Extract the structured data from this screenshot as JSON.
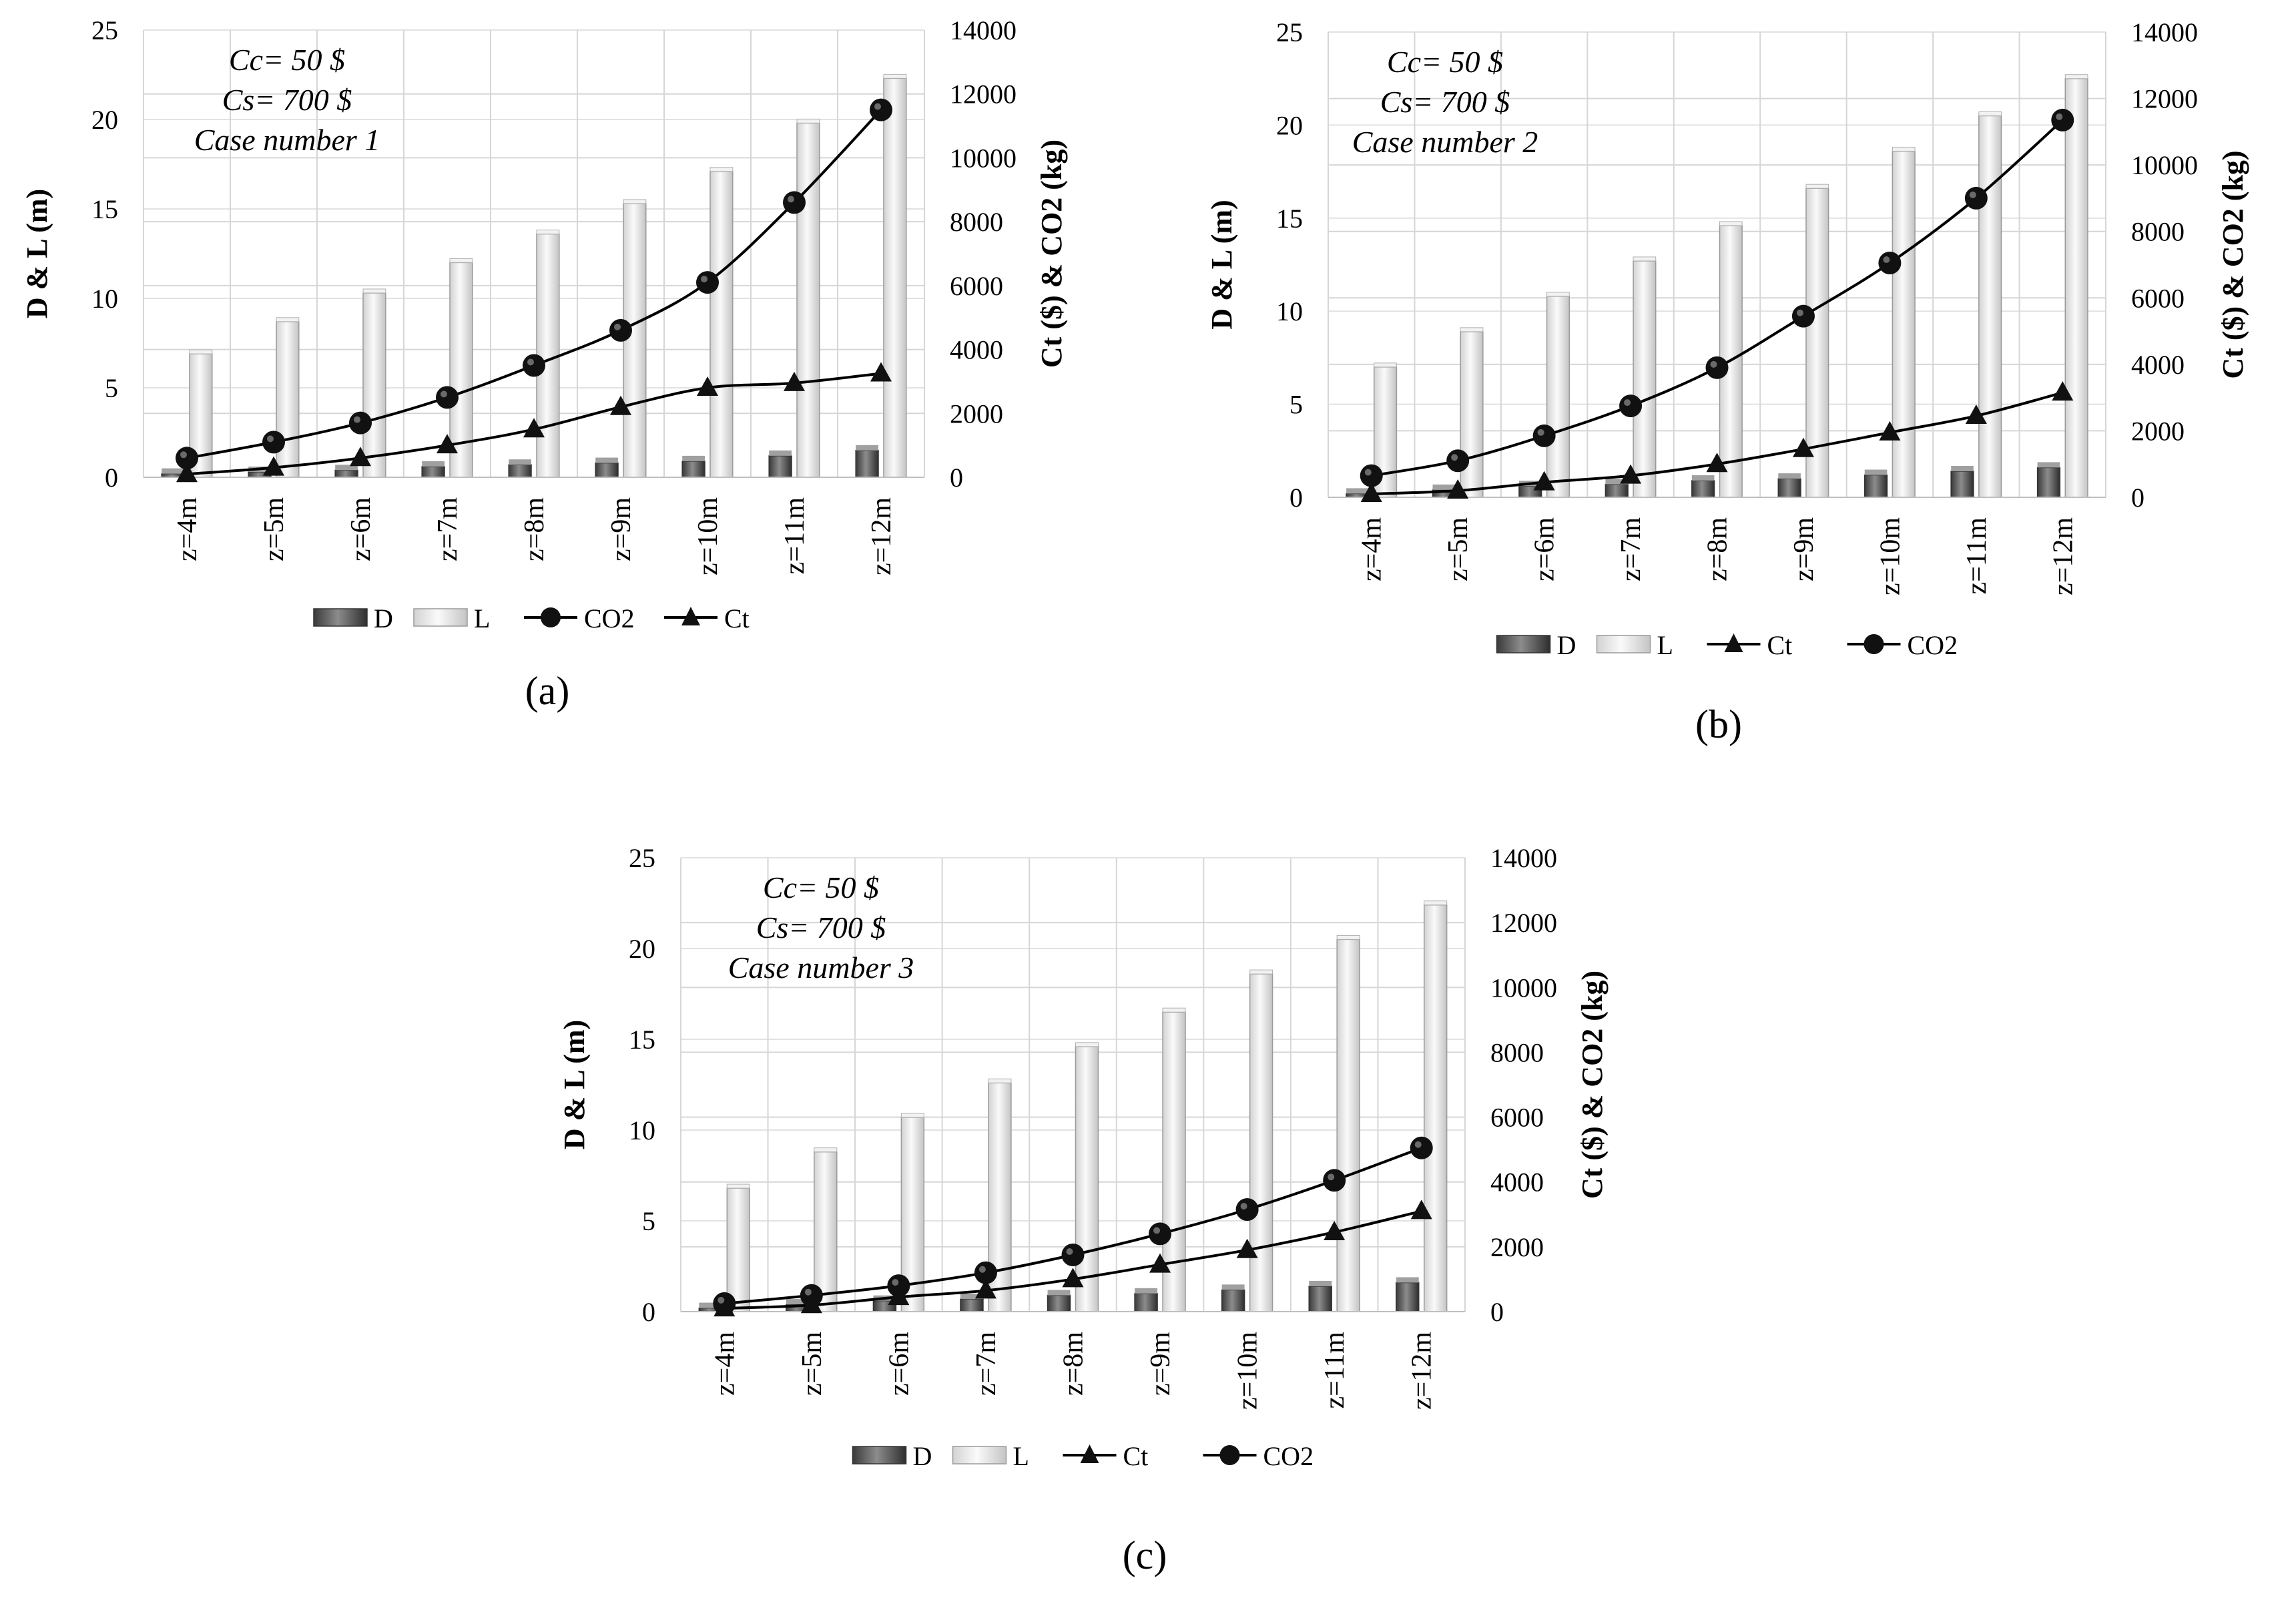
{
  "chart_data": [
    {
      "panel_label": "(a)",
      "type": "bar+line",
      "annotation": [
        "Cc= 50 $",
        "Cs= 700 $",
        "Case number 1"
      ],
      "ylabel_left": "D & L (m)",
      "ylabel_right": "Ct ($) & CO2 (kg)",
      "ylim_left": [
        0,
        25
      ],
      "ylim_right": [
        0,
        14000
      ],
      "yticks_left": [
        "0",
        "5",
        "10",
        "15",
        "20",
        "25"
      ],
      "yticks_right": [
        "0",
        "2000",
        "4000",
        "6000",
        "8000",
        "10000",
        "12000",
        "14000"
      ],
      "categories": [
        "z=4m",
        "z=5m",
        "z=6m",
        "z=7m",
        "z=8m",
        "z=9m",
        "z=10m",
        "z=11m",
        "z=12m"
      ],
      "grid": true,
      "legend_position": "bottom",
      "legend_order": [
        "D",
        "L",
        "CO2",
        "Ct"
      ],
      "series": [
        {
          "name": "D",
          "kind": "bar",
          "axis": "left",
          "color": "#5a5a5a",
          "values": [
            0.2,
            0.3,
            0.4,
            0.6,
            0.7,
            0.8,
            0.9,
            1.2,
            1.5
          ]
        },
        {
          "name": "L",
          "kind": "bar",
          "axis": "left",
          "color": "#e8e8e8",
          "values": [
            6.9,
            8.7,
            10.3,
            12.0,
            13.6,
            15.3,
            17.1,
            19.8,
            22.3
          ]
        },
        {
          "name": "CO2",
          "kind": "line",
          "marker": "circle",
          "axis": "right",
          "color": "#000000",
          "values": [
            600,
            1100,
            1700,
            2500,
            3500,
            4600,
            6100,
            8600,
            11500
          ]
        },
        {
          "name": "Ct",
          "kind": "line",
          "marker": "triangle",
          "axis": "right",
          "color": "#000000",
          "values": [
            100,
            300,
            600,
            1000,
            1500,
            2200,
            2800,
            2950,
            3250
          ]
        }
      ]
    },
    {
      "panel_label": "(b)",
      "type": "bar+line",
      "annotation": [
        "Cc= 50 $",
        "Cs= 700 $",
        "Case number 2"
      ],
      "ylabel_left": "D & L (m)",
      "ylabel_right": "Ct ($) & CO2 (kg)",
      "ylim_left": [
        0,
        25
      ],
      "ylim_right": [
        0,
        14000
      ],
      "yticks_left": [
        "0",
        "5",
        "10",
        "15",
        "20",
        "25"
      ],
      "yticks_right": [
        "0",
        "2000",
        "4000",
        "6000",
        "8000",
        "10000",
        "12000",
        "14000"
      ],
      "categories": [
        "z=4m",
        "z=5m",
        "z=6m",
        "z=7m",
        "z=8m",
        "z=9m",
        "z=10m",
        "z=11m",
        "z=12m"
      ],
      "grid": true,
      "legend_position": "bottom",
      "legend_order": [
        "D",
        "L",
        "Ct",
        "CO2"
      ],
      "series": [
        {
          "name": "D",
          "kind": "bar",
          "axis": "left",
          "color": "#5a5a5a",
          "values": [
            0.2,
            0.4,
            0.6,
            0.7,
            0.9,
            1.0,
            1.2,
            1.4,
            1.6
          ]
        },
        {
          "name": "L",
          "kind": "bar",
          "axis": "left",
          "color": "#e8e8e8",
          "values": [
            7.0,
            8.9,
            10.8,
            12.7,
            14.6,
            16.6,
            18.6,
            20.5,
            22.5
          ]
        },
        {
          "name": "CO2",
          "kind": "line",
          "marker": "circle",
          "axis": "right",
          "color": "#000000",
          "values": [
            650,
            1100,
            1850,
            2750,
            3900,
            5450,
            7050,
            9000,
            11350
          ]
        },
        {
          "name": "Ct",
          "kind": "line",
          "marker": "triangle",
          "axis": "right",
          "color": "#000000",
          "values": [
            100,
            200,
            450,
            650,
            1000,
            1450,
            1950,
            2450,
            3150
          ]
        }
      ]
    },
    {
      "panel_label": "(c)",
      "type": "bar+line",
      "annotation": [
        "Cc= 50 $",
        "Cs= 700 $",
        "Case number 3"
      ],
      "ylabel_left": "D & L (m)",
      "ylabel_right": "Ct ($) & CO2 (kg)",
      "ylim_left": [
        0,
        25
      ],
      "ylim_right": [
        0,
        14000
      ],
      "yticks_left": [
        "0",
        "5",
        "10",
        "15",
        "20",
        "25"
      ],
      "yticks_right": [
        "0",
        "2000",
        "4000",
        "6000",
        "8000",
        "10000",
        "12000",
        "14000"
      ],
      "categories": [
        "z=4m",
        "z=5m",
        "z=6m",
        "z=7m",
        "z=8m",
        "z=9m",
        "z=10m",
        "z=11m",
        "z=12m"
      ],
      "grid": true,
      "legend_position": "bottom",
      "legend_order": [
        "D",
        "L",
        "Ct",
        "CO2"
      ],
      "series": [
        {
          "name": "D",
          "kind": "bar",
          "axis": "left",
          "color": "#5a5a5a",
          "values": [
            0.2,
            0.4,
            0.6,
            0.7,
            0.9,
            1.0,
            1.2,
            1.4,
            1.6
          ]
        },
        {
          "name": "L",
          "kind": "bar",
          "axis": "left",
          "color": "#e8e8e8",
          "values": [
            6.8,
            8.8,
            10.7,
            12.6,
            14.6,
            16.5,
            18.6,
            20.5,
            22.4
          ]
        },
        {
          "name": "CO2",
          "kind": "line",
          "marker": "circle",
          "axis": "right",
          "color": "#000000",
          "values": [
            250,
            500,
            800,
            1200,
            1750,
            2400,
            3150,
            4050,
            5050
          ]
        },
        {
          "name": "Ct",
          "kind": "line",
          "marker": "triangle",
          "axis": "right",
          "color": "#000000",
          "values": [
            100,
            200,
            450,
            650,
            1000,
            1450,
            1900,
            2450,
            3100
          ]
        }
      ]
    }
  ]
}
